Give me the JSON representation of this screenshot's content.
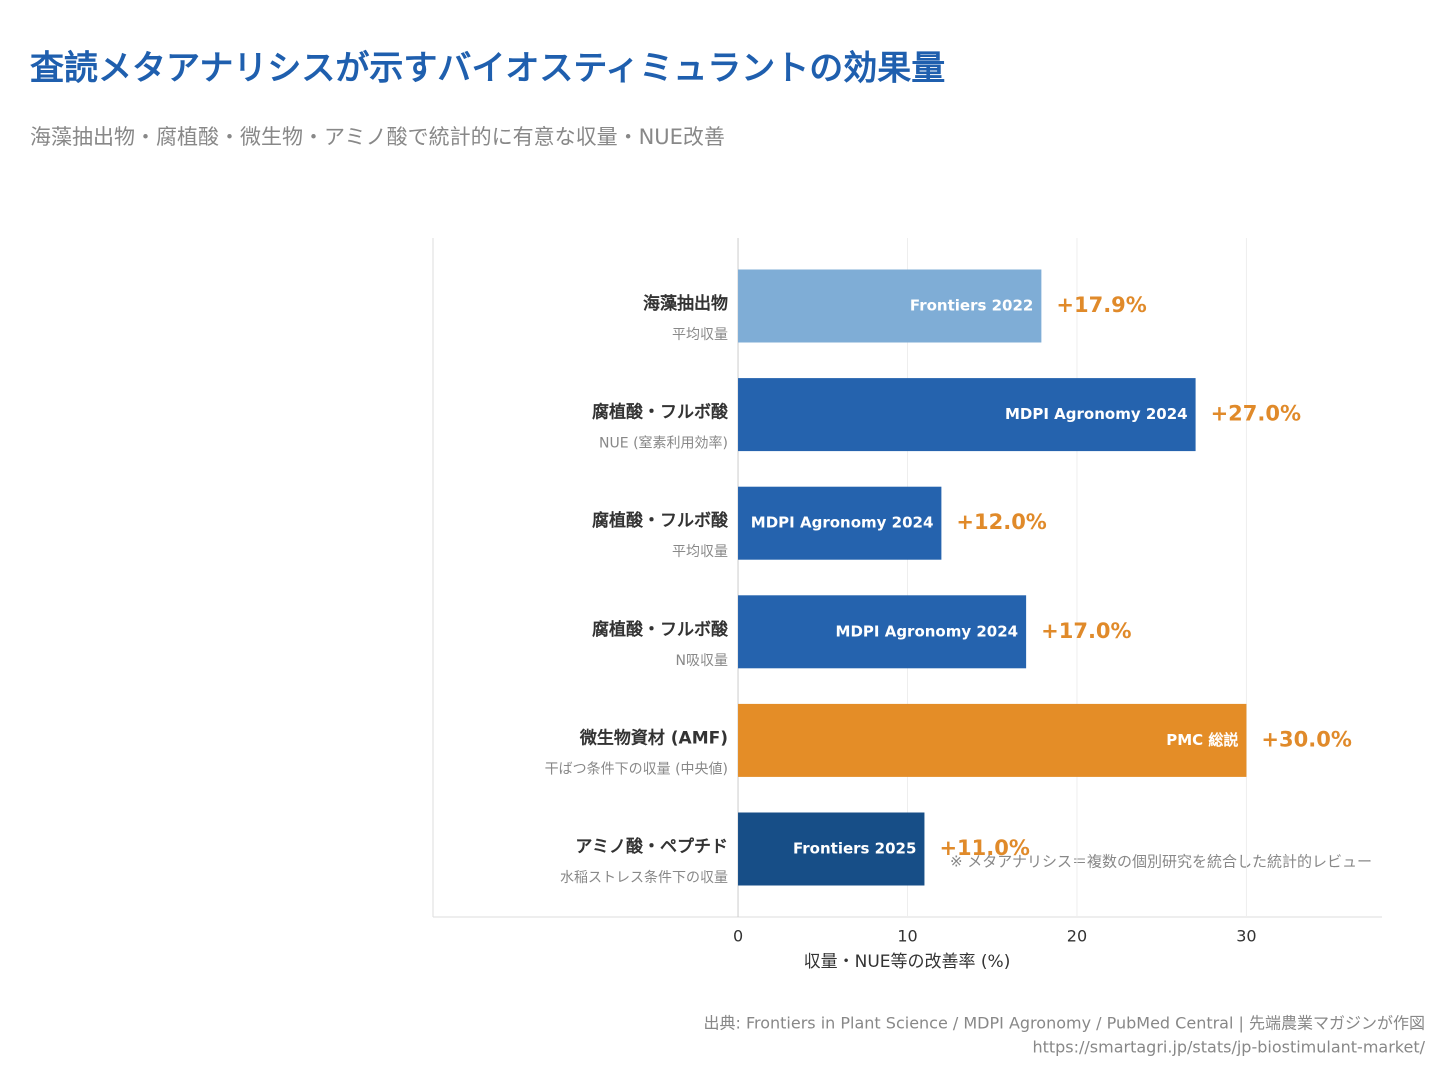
{
  "chart_data": {
    "type": "bar",
    "orientation": "horizontal",
    "title": "査読メタアナリシスが示すバイオスティミュラントの効果量",
    "subtitle": "海藻抽出物・腐植酸・微生物・アミノ酸で統計的に有意な収量・NUE改善",
    "categories": [
      "海藻抽出物",
      "腐植酸・フルボ酸",
      "腐植酸・フルボ酸",
      "腐植酸・フルボ酸",
      "微生物資材 (AMF)",
      "アミノ酸・ペプチド"
    ],
    "sublabels": [
      "平均収量",
      "NUE (窒素利用効率)",
      "平均収量",
      "N吸収量",
      "干ばつ条件下の収量 (中央値)",
      "水稲ストレス条件下の収量"
    ],
    "values": [
      17.9,
      27.0,
      12.0,
      17.0,
      30.0,
      11.0
    ],
    "value_labels": [
      "+17.9%",
      "+27.0%",
      "+12.0%",
      "+17.0%",
      "+30.0%",
      "+11.0%"
    ],
    "sources": [
      "Frontiers 2022",
      "MDPI Agronomy 2024",
      "MDPI Agronomy 2024",
      "MDPI Agronomy 2024",
      "PMC 総説",
      "Frontiers 2025"
    ],
    "colors": [
      "#7fadd6",
      "#2563ae",
      "#2563ae",
      "#2563ae",
      "#e48d27",
      "#174e87"
    ],
    "value_label_color": "#e08a2a",
    "xlabel": "収量・NUE等の改善率 (%)",
    "xlim": [
      -18,
      38
    ],
    "xticks": [
      0,
      10,
      20,
      30
    ],
    "grid": true,
    "annotation": "※ メタアナリシス＝複数の個別研究を統合した統計的レビュー",
    "footer": [
      "出典: Frontiers in Plant Science / MDPI Agronomy / PubMed Central | 先端農業マガジンが作図",
      "https://smartagri.jp/stats/jp-biostimulant-market/"
    ]
  }
}
